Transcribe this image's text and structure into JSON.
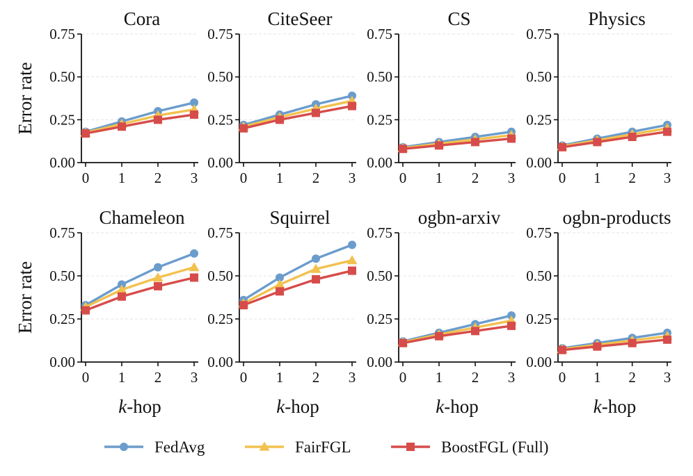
{
  "legend": [
    "FedAvg",
    "FairFGL",
    "BoostFGL (Full)"
  ],
  "colors": {
    "FedAvg": "#6b9ccc",
    "FairFGL": "#f2c14e",
    "BoostFGL (Full)": "#d64c4a"
  },
  "chart_data": [
    {
      "type": "line",
      "title": "Cora",
      "xlabel": "",
      "ylabel": "Error rate",
      "x": [
        0,
        1,
        2,
        3
      ],
      "xticks": [
        "0",
        "1",
        "2",
        "3"
      ],
      "yticks": [
        "0.00",
        "0.25",
        "0.50",
        "0.75"
      ],
      "ylim": [
        0,
        0.75
      ],
      "series": [
        {
          "name": "FedAvg",
          "values": [
            0.18,
            0.24,
            0.3,
            0.35
          ]
        },
        {
          "name": "FairFGL",
          "values": [
            0.175,
            0.225,
            0.275,
            0.31
          ]
        },
        {
          "name": "BoostFGL (Full)",
          "values": [
            0.17,
            0.21,
            0.25,
            0.28
          ]
        }
      ]
    },
    {
      "type": "line",
      "title": "CiteSeer",
      "xlabel": "",
      "ylabel": "",
      "x": [
        0,
        1,
        2,
        3
      ],
      "xticks": [
        "0",
        "1",
        "2",
        "3"
      ],
      "yticks": [
        "0.00",
        "0.25",
        "0.50",
        "0.75"
      ],
      "ylim": [
        0,
        0.75
      ],
      "series": [
        {
          "name": "FedAvg",
          "values": [
            0.22,
            0.28,
            0.34,
            0.39
          ]
        },
        {
          "name": "FairFGL",
          "values": [
            0.21,
            0.265,
            0.315,
            0.36
          ]
        },
        {
          "name": "BoostFGL (Full)",
          "values": [
            0.2,
            0.25,
            0.29,
            0.33
          ]
        }
      ]
    },
    {
      "type": "line",
      "title": "CS",
      "xlabel": "",
      "ylabel": "",
      "x": [
        0,
        1,
        2,
        3
      ],
      "xticks": [
        "0",
        "1",
        "2",
        "3"
      ],
      "yticks": [
        "0.00",
        "0.25",
        "0.50",
        "0.75"
      ],
      "ylim": [
        0,
        0.75
      ],
      "series": [
        {
          "name": "FedAvg",
          "values": [
            0.09,
            0.12,
            0.15,
            0.18
          ]
        },
        {
          "name": "FairFGL",
          "values": [
            0.085,
            0.11,
            0.135,
            0.16
          ]
        },
        {
          "name": "BoostFGL (Full)",
          "values": [
            0.08,
            0.1,
            0.12,
            0.14
          ]
        }
      ]
    },
    {
      "type": "line",
      "title": "Physics",
      "xlabel": "",
      "ylabel": "",
      "x": [
        0,
        1,
        2,
        3
      ],
      "xticks": [
        "0",
        "1",
        "2",
        "3"
      ],
      "yticks": [
        "0.00",
        "0.25",
        "0.50",
        "0.75"
      ],
      "ylim": [
        0,
        0.75
      ],
      "series": [
        {
          "name": "FedAvg",
          "values": [
            0.1,
            0.14,
            0.18,
            0.22
          ]
        },
        {
          "name": "FairFGL",
          "values": [
            0.095,
            0.13,
            0.165,
            0.2
          ]
        },
        {
          "name": "BoostFGL (Full)",
          "values": [
            0.09,
            0.12,
            0.15,
            0.18
          ]
        }
      ]
    },
    {
      "type": "line",
      "title": "Chameleon",
      "xlabel": "k-hop",
      "ylabel": "Error rate",
      "x": [
        0,
        1,
        2,
        3
      ],
      "xticks": [
        "0",
        "1",
        "2",
        "3"
      ],
      "yticks": [
        "0.00",
        "0.25",
        "0.50",
        "0.75"
      ],
      "ylim": [
        0,
        0.75
      ],
      "series": [
        {
          "name": "FedAvg",
          "values": [
            0.33,
            0.45,
            0.55,
            0.63
          ]
        },
        {
          "name": "FairFGL",
          "values": [
            0.32,
            0.42,
            0.49,
            0.55
          ]
        },
        {
          "name": "BoostFGL (Full)",
          "values": [
            0.3,
            0.38,
            0.44,
            0.49
          ]
        }
      ]
    },
    {
      "type": "line",
      "title": "Squirrel",
      "xlabel": "k-hop",
      "ylabel": "",
      "x": [
        0,
        1,
        2,
        3
      ],
      "xticks": [
        "0",
        "1",
        "2",
        "3"
      ],
      "yticks": [
        "0.00",
        "0.25",
        "0.50",
        "0.75"
      ],
      "ylim": [
        0,
        0.75
      ],
      "series": [
        {
          "name": "FedAvg",
          "values": [
            0.36,
            0.49,
            0.6,
            0.68
          ]
        },
        {
          "name": "FairFGL",
          "values": [
            0.34,
            0.45,
            0.54,
            0.59
          ]
        },
        {
          "name": "BoostFGL (Full)",
          "values": [
            0.33,
            0.41,
            0.48,
            0.53
          ]
        }
      ]
    },
    {
      "type": "line",
      "title": "ogbn-arxiv",
      "xlabel": "k-hop",
      "ylabel": "",
      "x": [
        0,
        1,
        2,
        3
      ],
      "xticks": [
        "0",
        "1",
        "2",
        "3"
      ],
      "yticks": [
        "0.00",
        "0.25",
        "0.50",
        "0.75"
      ],
      "ylim": [
        0,
        0.75
      ],
      "series": [
        {
          "name": "FedAvg",
          "values": [
            0.12,
            0.17,
            0.22,
            0.27
          ]
        },
        {
          "name": "FairFGL",
          "values": [
            0.115,
            0.16,
            0.2,
            0.24
          ]
        },
        {
          "name": "BoostFGL (Full)",
          "values": [
            0.11,
            0.15,
            0.18,
            0.21
          ]
        }
      ]
    },
    {
      "type": "line",
      "title": "ogbn-products",
      "xlabel": "k-hop",
      "ylabel": "",
      "x": [
        0,
        1,
        2,
        3
      ],
      "xticks": [
        "0",
        "1",
        "2",
        "3"
      ],
      "yticks": [
        "0.00",
        "0.25",
        "0.50",
        "0.75"
      ],
      "ylim": [
        0,
        0.75
      ],
      "series": [
        {
          "name": "FedAvg",
          "values": [
            0.08,
            0.11,
            0.14,
            0.17
          ]
        },
        {
          "name": "FairFGL",
          "values": [
            0.075,
            0.1,
            0.125,
            0.15
          ]
        },
        {
          "name": "BoostFGL (Full)",
          "values": [
            0.07,
            0.09,
            0.11,
            0.13
          ]
        }
      ]
    }
  ]
}
